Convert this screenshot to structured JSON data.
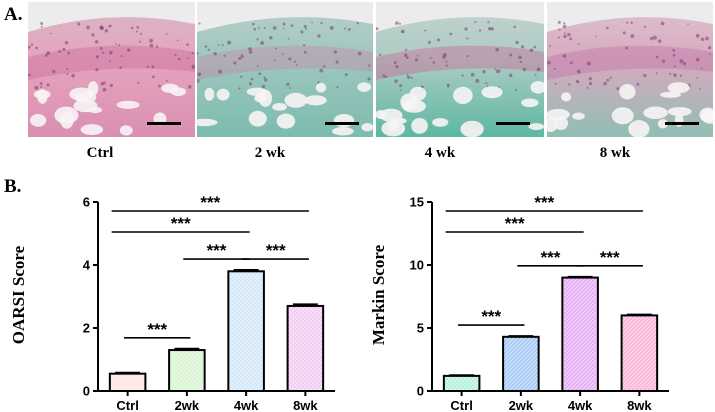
{
  "panel_a": {
    "label": "A.",
    "images": [
      {
        "caption": "Ctrl",
        "palette": {
          "top": "#d9b7c6",
          "mid": "#e5a3bd",
          "bone": "#d98fb3",
          "accent": "#c45f95"
        }
      },
      {
        "caption": "2 wk",
        "palette": {
          "top": "#b9cfca",
          "mid": "#9cc6be",
          "bone": "#7cbcae",
          "accent": "#d07aa4"
        }
      },
      {
        "caption": "4 wk",
        "palette": {
          "top": "#c6d3cf",
          "mid": "#aacbc3",
          "bone": "#5db7a2",
          "accent": "#d0508c"
        }
      },
      {
        "caption": "8 wk",
        "palette": {
          "top": "#ddc3ce",
          "mid": "#d7a9bf",
          "bone": "#8fbfb4",
          "accent": "#b96aa0"
        }
      }
    ]
  },
  "panel_b": {
    "label": "B."
  },
  "chart_data": [
    {
      "type": "bar",
      "categories": [
        "Ctrl",
        "2wk",
        "4wk",
        "8wk"
      ],
      "values": [
        0.55,
        1.3,
        3.8,
        2.7
      ],
      "errors": [
        0.03,
        0.04,
        0.04,
        0.05
      ],
      "colors": [
        "#fde6e6",
        "#d9f5d4",
        "#d5e8f8",
        "#f2cff2"
      ],
      "ylabel": "OARSI Score",
      "ylim": [
        0,
        6
      ],
      "yticks": [
        0,
        2,
        4,
        6
      ],
      "significance": [
        {
          "from": 0,
          "to": 1,
          "label": "***"
        },
        {
          "from": 1,
          "to": 2,
          "label": "***"
        },
        {
          "from": 2,
          "to": 3,
          "label": "***"
        },
        {
          "from": 0,
          "to": 2,
          "label": "***"
        },
        {
          "from": 0,
          "to": 3,
          "label": "***"
        }
      ]
    },
    {
      "type": "bar",
      "categories": [
        "Ctrl",
        "2wk",
        "4wk",
        "8wk"
      ],
      "values": [
        1.2,
        4.3,
        9.0,
        6.0
      ],
      "errors": [
        0.05,
        0.06,
        0.06,
        0.06
      ],
      "colors": [
        "#b8f0dd",
        "#a9cdf7",
        "#e6b0f7",
        "#fbb8da"
      ],
      "ylabel": "Markin Score",
      "ylim": [
        0,
        15
      ],
      "yticks": [
        0,
        5,
        10,
        15
      ],
      "significance": [
        {
          "from": 0,
          "to": 1,
          "label": "***"
        },
        {
          "from": 1,
          "to": 2,
          "label": "***"
        },
        {
          "from": 2,
          "to": 3,
          "label": "***"
        },
        {
          "from": 0,
          "to": 2,
          "label": "***"
        },
        {
          "from": 0,
          "to": 3,
          "label": "***"
        }
      ]
    }
  ]
}
